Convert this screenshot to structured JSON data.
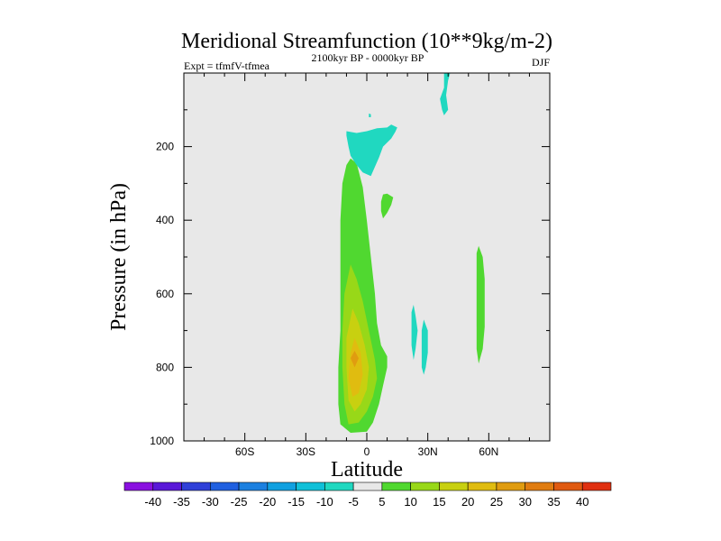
{
  "chart_data": {
    "type": "heatmap",
    "subtype": "filled-contour",
    "title": "Meridional Streamfunction (10**9kg/m-2)",
    "subtitle_left": "Expt = tfmfV-tfmea",
    "subtitle_center": "2100kyr BP - 0000kyr BP",
    "subtitle_right": "DJF",
    "xlabel": "Latitude",
    "ylabel": "Pressure (in hPa)",
    "xlim": [
      -90,
      90
    ],
    "ylim": [
      0,
      1000
    ],
    "y_inverted": true,
    "x_ticks": [
      {
        "value": -60,
        "label": "60S"
      },
      {
        "value": -30,
        "label": "30S"
      },
      {
        "value": 0,
        "label": "0"
      },
      {
        "value": 30,
        "label": "30N"
      },
      {
        "value": 60,
        "label": "60N"
      }
    ],
    "y_ticks": [
      {
        "value": 200,
        "label": "200"
      },
      {
        "value": 400,
        "label": "400"
      },
      {
        "value": 600,
        "label": "600"
      },
      {
        "value": 800,
        "label": "800"
      },
      {
        "value": 1000,
        "label": "1000"
      }
    ],
    "background_color": "#e8e8e8",
    "colorbar": {
      "levels": [
        "-40",
        "-35",
        "-30",
        "-25",
        "-20",
        "-15",
        "-10",
        "-5",
        "5",
        "10",
        "15",
        "20",
        "25",
        "30",
        "35",
        "40"
      ],
      "colors": [
        "#8a10e0",
        "#5a18d8",
        "#2f40d8",
        "#2060e0",
        "#1c80e0",
        "#10a0e0",
        "#10c0d8",
        "#20d8c0",
        "#e8e8e8",
        "#50d830",
        "#98d818",
        "#c8d010",
        "#e0bc10",
        "#e09c10",
        "#e07c10",
        "#e05a10",
        "#e03010"
      ]
    },
    "features": [
      {
        "name": "tropical-cell-5to10",
        "class": 9,
        "points": [
          [
            -8,
            232
          ],
          [
            -5,
            245
          ],
          [
            -2,
            310
          ],
          [
            0,
            400
          ],
          [
            2,
            500
          ],
          [
            4,
            600
          ],
          [
            5,
            680
          ],
          [
            7,
            740
          ],
          [
            10,
            770
          ],
          [
            10,
            800
          ],
          [
            8,
            850
          ],
          [
            6,
            900
          ],
          [
            3,
            950
          ],
          [
            0,
            975
          ],
          [
            -8,
            978
          ],
          [
            -13,
            955
          ],
          [
            -14,
            900
          ],
          [
            -14,
            800
          ],
          [
            -13,
            700
          ],
          [
            -13,
            600
          ],
          [
            -13,
            500
          ],
          [
            -13,
            400
          ],
          [
            -12,
            300
          ],
          [
            -10,
            250
          ]
        ]
      },
      {
        "name": "tropical-cell-10to15",
        "class": 10,
        "points": [
          [
            -8,
            520
          ],
          [
            -5,
            560
          ],
          [
            -2,
            620
          ],
          [
            1,
            700
          ],
          [
            4,
            780
          ],
          [
            5,
            830
          ],
          [
            3,
            880
          ],
          [
            0,
            920
          ],
          [
            -4,
            950
          ],
          [
            -9,
            955
          ],
          [
            -11,
            900
          ],
          [
            -12,
            800
          ],
          [
            -12,
            700
          ],
          [
            -11,
            600
          ]
        ]
      },
      {
        "name": "tropical-cell-15to20",
        "class": 11,
        "points": [
          [
            -7,
            640
          ],
          [
            -4,
            680
          ],
          [
            -1,
            740
          ],
          [
            1,
            800
          ],
          [
            0,
            860
          ],
          [
            -3,
            900
          ],
          [
            -6,
            920
          ],
          [
            -9,
            890
          ],
          [
            -10,
            800
          ],
          [
            -10,
            720
          ]
        ]
      },
      {
        "name": "tropical-cell-20to25",
        "class": 12,
        "points": [
          [
            -6,
            720
          ],
          [
            -3,
            760
          ],
          [
            -2,
            820
          ],
          [
            -4,
            870
          ],
          [
            -7,
            880
          ],
          [
            -9,
            830
          ],
          [
            -8,
            760
          ]
        ]
      },
      {
        "name": "tropical-cell-25to30",
        "class": 13,
        "points": [
          [
            -6,
            755
          ],
          [
            -4,
            775
          ],
          [
            -6,
            800
          ],
          [
            -8,
            775
          ]
        ]
      },
      {
        "name": "upper-neg-cell",
        "class": 7,
        "points": [
          [
            -10,
            158
          ],
          [
            -5,
            163
          ],
          [
            0,
            158
          ],
          [
            5,
            150
          ],
          [
            10,
            148
          ],
          [
            12,
            140
          ],
          [
            15,
            148
          ],
          [
            14,
            160
          ],
          [
            12,
            178
          ],
          [
            8,
            200
          ],
          [
            6,
            230
          ],
          [
            4,
            255
          ],
          [
            2,
            280
          ],
          [
            -2,
            270
          ],
          [
            -5,
            250
          ],
          [
            -8,
            225
          ],
          [
            -9,
            200
          ],
          [
            -10,
            170
          ]
        ]
      },
      {
        "name": "upper-neg-cell-fleck",
        "class": 7,
        "points": [
          [
            1,
            110
          ],
          [
            2,
            112
          ],
          [
            2,
            120
          ],
          [
            1,
            120
          ]
        ]
      },
      {
        "name": "small-pos-blob",
        "class": 9,
        "points": [
          [
            8,
            330
          ],
          [
            10,
            328
          ],
          [
            13,
            338
          ],
          [
            12,
            358
          ],
          [
            10,
            380
          ],
          [
            8,
            395
          ],
          [
            7,
            375
          ],
          [
            7,
            350
          ]
        ]
      },
      {
        "name": "top-neg-streak",
        "class": 7,
        "points": [
          [
            38,
            0
          ],
          [
            41,
            0
          ],
          [
            40,
            20
          ],
          [
            39,
            60
          ],
          [
            40,
            100
          ],
          [
            38,
            115
          ],
          [
            37,
            100
          ],
          [
            36,
            70
          ],
          [
            38,
            40
          ]
        ]
      },
      {
        "name": "lower-neg-streak-1",
        "class": 7,
        "points": [
          [
            23,
            630
          ],
          [
            24,
            660
          ],
          [
            25,
            700
          ],
          [
            24,
            750
          ],
          [
            23,
            780
          ],
          [
            22,
            740
          ],
          [
            22,
            680
          ],
          [
            22,
            650
          ]
        ]
      },
      {
        "name": "lower-neg-streak-2",
        "class": 7,
        "points": [
          [
            28,
            670
          ],
          [
            30,
            700
          ],
          [
            30,
            760
          ],
          [
            29,
            800
          ],
          [
            28,
            820
          ],
          [
            27,
            800
          ],
          [
            27,
            740
          ],
          [
            27,
            700
          ]
        ]
      },
      {
        "name": "subtropical-pos-streak",
        "class": 9,
        "points": [
          [
            55,
            470
          ],
          [
            57,
            500
          ],
          [
            58,
            560
          ],
          [
            58,
            620
          ],
          [
            58,
            690
          ],
          [
            57,
            750
          ],
          [
            55,
            790
          ],
          [
            54,
            750
          ],
          [
            54,
            680
          ],
          [
            54,
            600
          ],
          [
            54,
            540
          ],
          [
            54,
            490
          ]
        ]
      }
    ]
  }
}
